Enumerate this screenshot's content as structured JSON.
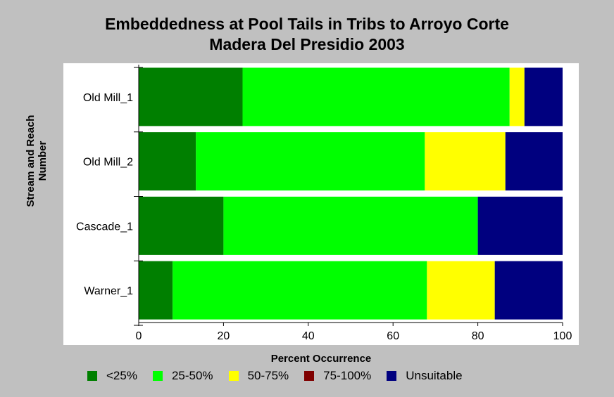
{
  "chart_data": {
    "type": "bar",
    "orientation": "horizontal",
    "stacked": true,
    "title": [
      "Embeddedness at Pool Tails in Tribs to Arroyo Corte",
      "Madera Del Presidio 2003"
    ],
    "xlabel": "Percent Occurrence",
    "ylabel": [
      "Stream and Reach",
      "Number"
    ],
    "xlim": [
      0,
      100
    ],
    "xticks": [
      0,
      20,
      40,
      60,
      80,
      100
    ],
    "categories": [
      "Old Mill_1",
      "Old Mill_2",
      "Cascade_1",
      "Warner_1"
    ],
    "series": [
      {
        "name": "<25%",
        "color": "#007f00",
        "values": [
          24.5,
          13.5,
          20,
          8
        ]
      },
      {
        "name": "25-50%",
        "color": "#00ff00",
        "values": [
          63,
          54,
          60,
          60
        ]
      },
      {
        "name": "50-75%",
        "color": "#ffff00",
        "values": [
          3.5,
          19,
          0,
          16
        ]
      },
      {
        "name": "75-100%",
        "color": "#7f0000",
        "values": [
          0,
          0,
          0,
          0
        ]
      },
      {
        "name": "Unsuitable",
        "color": "#00007f",
        "values": [
          9,
          13.5,
          20,
          16
        ]
      }
    ],
    "grid": false,
    "legend_position": "bottom"
  }
}
